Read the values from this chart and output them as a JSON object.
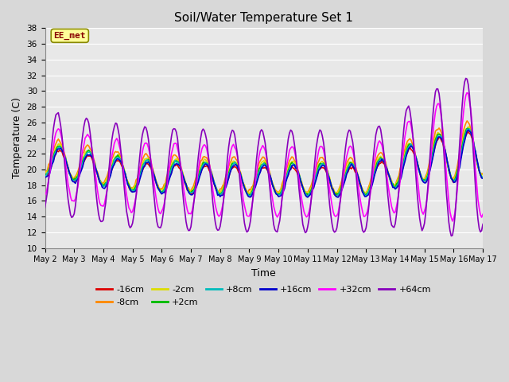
{
  "title": "Soil/Water Temperature Set 1",
  "xlabel": "Time",
  "ylabel": "Temperature (C)",
  "ylim": [
    10,
    38
  ],
  "yticks": [
    10,
    12,
    14,
    16,
    18,
    20,
    22,
    24,
    26,
    28,
    30,
    32,
    34,
    36,
    38
  ],
  "background_color": "#d8d8d8",
  "plot_bg_color": "#e8e8e8",
  "grid_color": "#ffffff",
  "series": [
    {
      "label": "-16cm",
      "color": "#dd0000",
      "lw": 1.2
    },
    {
      "label": "-8cm",
      "color": "#ff8800",
      "lw": 1.2
    },
    {
      "label": "-2cm",
      "color": "#dddd00",
      "lw": 1.2
    },
    {
      "label": "+2cm",
      "color": "#00bb00",
      "lw": 1.2
    },
    {
      "label": "+8cm",
      "color": "#00bbbb",
      "lw": 1.2
    },
    {
      "label": "+16cm",
      "color": "#0000cc",
      "lw": 1.2
    },
    {
      "label": "+32cm",
      "color": "#ff00ff",
      "lw": 1.2
    },
    {
      "label": "+64cm",
      "color": "#8800bb",
      "lw": 1.2
    }
  ],
  "annotation": {
    "text": "EE_met",
    "fontsize": 8,
    "color": "#880000",
    "bg": "#ffff99",
    "border": "#888800"
  },
  "x_tick_labels": [
    "May 2",
    "May 3",
    "May 4",
    "May 5",
    "May 6",
    "May 7",
    "May 8",
    "May 9",
    "May 10",
    "May 11",
    "May 12",
    "May 13",
    "May 14",
    "May 15",
    "May 16",
    "May 17"
  ],
  "n_points": 361
}
